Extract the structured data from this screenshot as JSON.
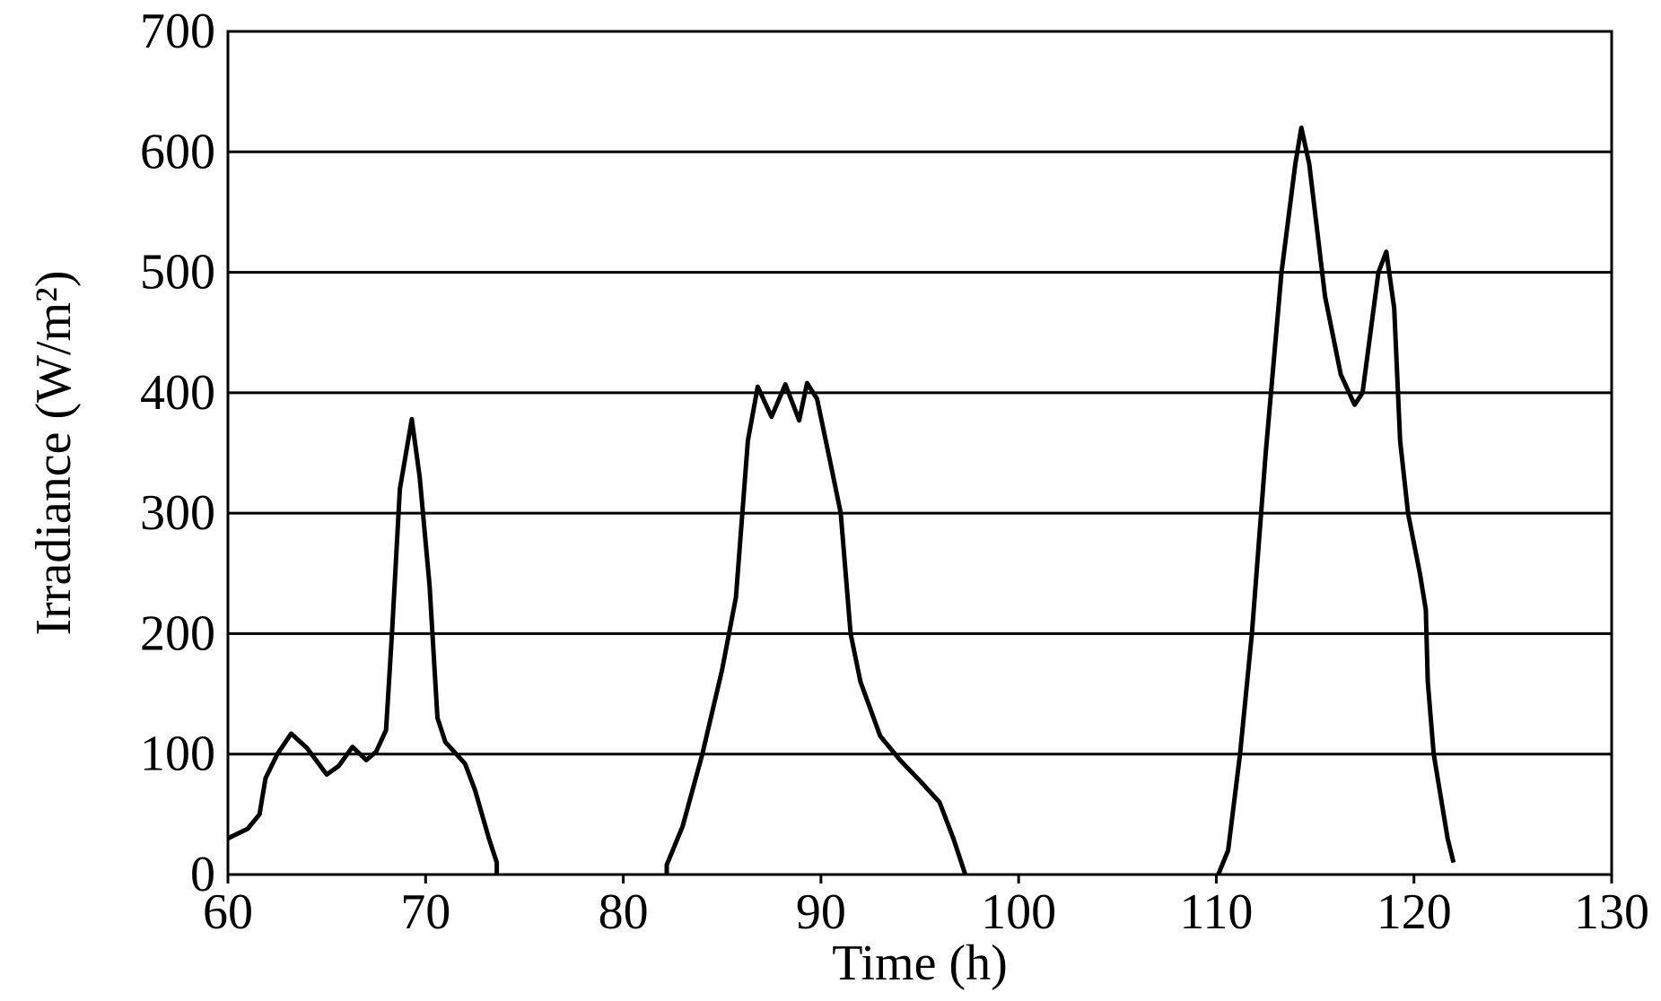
{
  "chart_data": {
    "type": "line",
    "xlabel": "Time (h)",
    "ylabel": "Irradiance (W/m²)",
    "x": [
      60,
      61,
      61.6,
      61.9,
      62.5,
      63.2,
      64,
      65,
      65.6,
      66.3,
      67,
      67.5,
      68,
      68.3,
      68.7,
      69.3,
      69.7,
      70.2,
      70.6,
      71,
      72,
      72.5,
      73.2,
      73.6,
      73.6,
      78,
      82.2,
      82.2,
      83,
      84,
      85,
      85.7,
      86.3,
      86.8,
      87.5,
      88.2,
      88.9,
      89.3,
      89.8,
      90.5,
      91,
      91.5,
      92,
      93,
      94,
      95,
      96,
      96.7,
      97.2,
      97.3,
      104,
      110.1,
      110.6,
      111.2,
      111.8,
      112.5,
      113.3,
      114,
      114.3,
      114.7,
      115.5,
      116.3,
      117,
      117.4,
      118.2,
      118.6,
      119,
      119.3,
      119.7,
      120.3,
      120.6,
      120.7,
      121,
      121.7,
      122
    ],
    "values": [
      30,
      38,
      50,
      80,
      100,
      117,
      105,
      83,
      90,
      106,
      95,
      102,
      120,
      200,
      320,
      378,
      330,
      240,
      130,
      110,
      92,
      70,
      30,
      10,
      0,
      null,
      0,
      8,
      40,
      100,
      170,
      230,
      360,
      405,
      380,
      407,
      377,
      408,
      395,
      340,
      300,
      200,
      160,
      115,
      95,
      78,
      60,
      30,
      5,
      0,
      null,
      0,
      20,
      100,
      200,
      350,
      500,
      590,
      620,
      590,
      480,
      415,
      390,
      400,
      500,
      517,
      470,
      360,
      300,
      250,
      220,
      160,
      100,
      30,
      10
    ],
    "color": "#000000",
    "xlim": [
      60,
      130
    ],
    "xticks": [
      60,
      70,
      80,
      90,
      100,
      110,
      120,
      130
    ],
    "ylim": [
      0,
      700
    ],
    "yticks": [
      0,
      100,
      200,
      300,
      400,
      500,
      600,
      700
    ],
    "grid": true
  }
}
